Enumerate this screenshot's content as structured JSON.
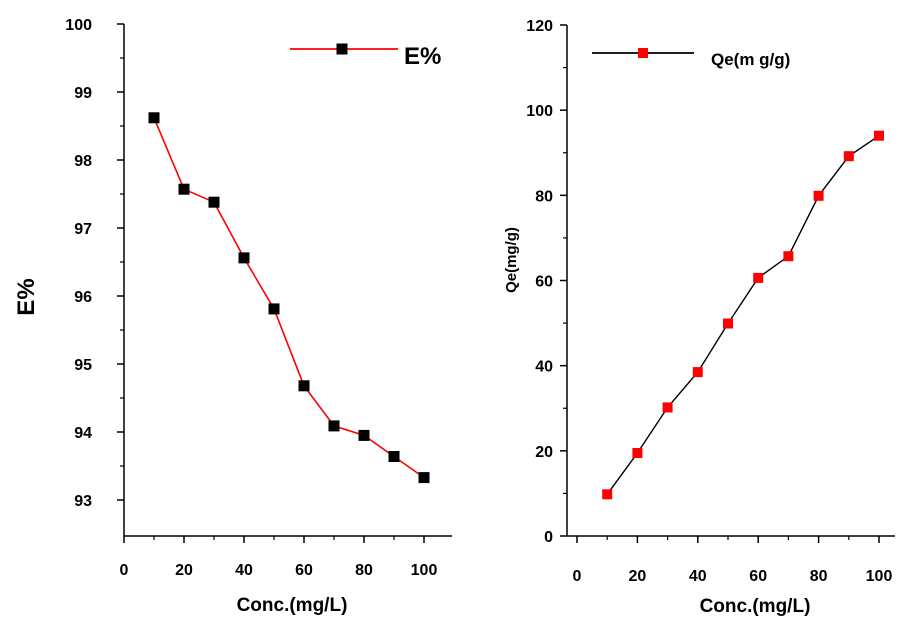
{
  "chart_data": [
    {
      "type": "line",
      "xlabel": "Conc.(mg/L)",
      "ylabel": "E%",
      "xlim": [
        0,
        110
      ],
      "ylim": [
        92.5,
        100
      ],
      "x_ticks": [
        0,
        20,
        40,
        60,
        80,
        100
      ],
      "y_ticks": [
        93,
        94,
        95,
        96,
        97,
        98,
        99,
        100
      ],
      "legend_position": "top-right",
      "series": [
        {
          "name": "E%",
          "line_color": "#ff0000",
          "marker_color": "#000000",
          "x": [
            10,
            20,
            30,
            40,
            50,
            60,
            70,
            80,
            90,
            100
          ],
          "y": [
            98.62,
            97.57,
            97.38,
            96.56,
            95.81,
            94.68,
            94.09,
            93.95,
            93.64,
            93.33
          ]
        }
      ]
    },
    {
      "type": "line",
      "xlabel": "Conc.(mg/L)",
      "ylabel": "Qe(mg/g)",
      "xlim": [
        -5,
        105
      ],
      "ylim": [
        0,
        120
      ],
      "x_ticks": [
        0,
        20,
        40,
        60,
        80,
        100
      ],
      "y_ticks": [
        0,
        20,
        40,
        60,
        80,
        100,
        120
      ],
      "legend_position": "top-left",
      "series": [
        {
          "name": "Qe(m g/g)",
          "line_color": "#000000",
          "marker_color": "#ff0000",
          "x": [
            10,
            20,
            30,
            40,
            50,
            60,
            70,
            80,
            90,
            100
          ],
          "y": [
            9.8,
            19.5,
            30.2,
            38.5,
            49.9,
            60.6,
            65.7,
            79.9,
            89.2,
            94.0
          ]
        }
      ]
    }
  ]
}
